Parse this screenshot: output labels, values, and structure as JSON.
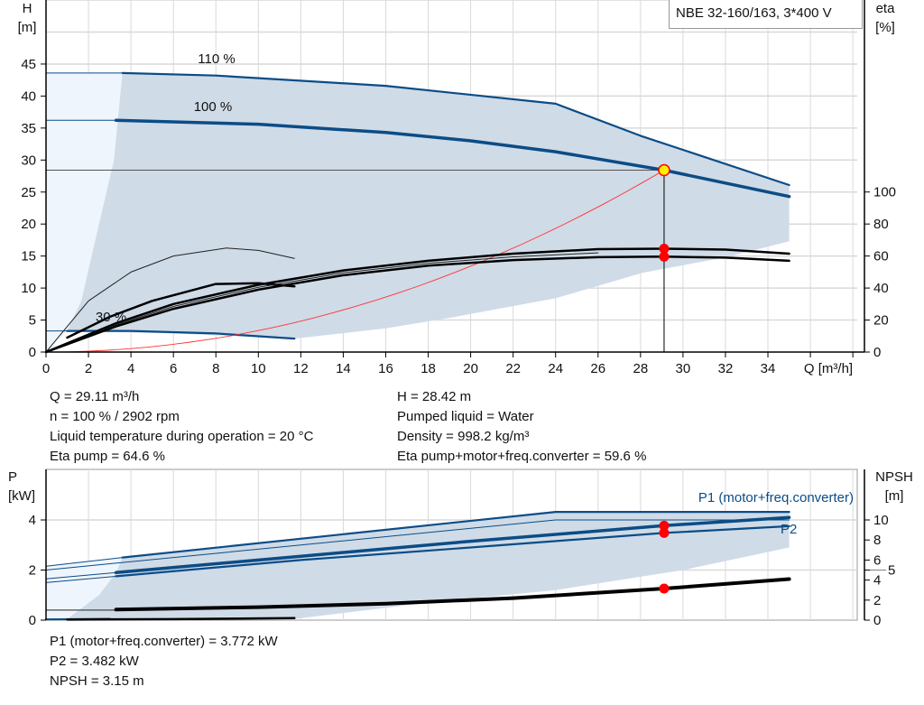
{
  "header": {
    "title": "NBE 32-160/163, 3*400 V"
  },
  "colors": {
    "curve_blue": "#0b4c86",
    "area_shade": "#cfdbe7",
    "area_light": "#eef5fc",
    "grid": "#d9d9d9",
    "system_curve": "#ff3333",
    "operating_point": "#ffee00",
    "marker": "#ff0000"
  },
  "info_top": {
    "left": [
      "Q = 29.11 m³/h",
      "n = 100 % / 2902 rpm",
      "Liquid temperature during operation = 20 °C",
      "Eta pump = 64.6 %"
    ],
    "right": [
      "H = 28.42 m",
      "Pumped liquid = Water",
      "Density = 998.2 kg/m³",
      "Eta pump+motor+freq.converter = 59.6 %"
    ]
  },
  "info_bottom": [
    "P1 (motor+freq.converter) = 3.772 kW",
    "P2 = 3.482 kW",
    "NPSH = 3.15 m"
  ],
  "chart_data": [
    {
      "type": "line",
      "title": "NBE 32-160/163, 3*400 V",
      "xlabel": "Q [m³/h]",
      "ylabel_left": {
        "name": "H",
        "unit": "[m]"
      },
      "ylabel_right": {
        "name": "eta",
        "unit": "[%]"
      },
      "xlim": [
        0,
        38
      ],
      "ylim_left": [
        0,
        50
      ],
      "ylim_right": [
        0,
        100
      ],
      "x_ticks": [
        "0",
        "2",
        "4",
        "6",
        "8",
        "10",
        "12",
        "14",
        "16",
        "18",
        "20",
        "22",
        "24",
        "26",
        "28",
        "30",
        "32",
        "34"
      ],
      "y_left_ticks": [
        "0",
        "5",
        "10",
        "15",
        "20",
        "25",
        "30",
        "35",
        "40",
        "45"
      ],
      "y_right_ticks": [
        "0",
        "20",
        "40",
        "60",
        "80",
        "100"
      ],
      "grid": true,
      "annotations": [
        "110 %",
        "100 %",
        "30 %"
      ],
      "operating_point": {
        "Q": 29.11,
        "H": 28.42,
        "eta_pump": 64.6,
        "eta_total": 59.6
      },
      "areas": {
        "light": [
          [
            0,
            0
          ],
          [
            0,
            43.6
          ],
          [
            3.6,
            43.6
          ],
          [
            3.2,
            30
          ],
          [
            2.5,
            20
          ],
          [
            1.66,
            8
          ],
          [
            1,
            3.3
          ],
          [
            0,
            0
          ]
        ],
        "shade": [
          [
            1,
            3.3
          ],
          [
            1.66,
            8
          ],
          [
            2.5,
            20
          ],
          [
            3.2,
            30
          ],
          [
            3.6,
            43.6
          ],
          [
            8,
            43.2
          ],
          [
            16,
            41.6
          ],
          [
            24,
            38.8
          ],
          [
            28,
            33.8
          ],
          [
            35,
            26.1
          ],
          [
            35,
            17.3
          ],
          [
            32,
            14.8
          ],
          [
            28.1,
            12.4
          ],
          [
            24,
            8.4
          ],
          [
            19.1,
            5.4
          ],
          [
            16,
            3.7
          ],
          [
            11.7,
            2.1
          ],
          [
            6,
            2.9
          ],
          [
            1,
            3.3
          ]
        ]
      },
      "series": [
        {
          "axis": "H",
          "style": "thin-blue",
          "points": [
            [
              0,
              43.6
            ],
            [
              3.6,
              43.6
            ]
          ]
        },
        {
          "axis": "H",
          "style": "blue",
          "points": [
            [
              3.6,
              43.6
            ],
            [
              8,
              43.2
            ],
            [
              16,
              41.6
            ],
            [
              24,
              38.8
            ],
            [
              28,
              33.8
            ],
            [
              35,
              26.1
            ]
          ]
        },
        {
          "axis": "H",
          "style": "thin-blue",
          "points": [
            [
              0,
              36.2
            ],
            [
              3.3,
              36.2
            ]
          ]
        },
        {
          "axis": "H",
          "style": "thick-blue",
          "points": [
            [
              3.3,
              36.2
            ],
            [
              10,
              35.6
            ],
            [
              16,
              34.3
            ],
            [
              20,
              33.0
            ],
            [
              24,
              31.3
            ],
            [
              29.11,
              28.42
            ],
            [
              35,
              24.3
            ]
          ]
        },
        {
          "axis": "H",
          "style": "thin-blue",
          "points": [
            [
              0,
              3.3
            ],
            [
              1,
              3.3
            ]
          ]
        },
        {
          "axis": "H",
          "style": "blue",
          "points": [
            [
              1,
              3.3
            ],
            [
              4,
              3.3
            ],
            [
              8,
              2.9
            ],
            [
              11.7,
              2.1
            ]
          ]
        },
        {
          "axis": "H",
          "style": "system",
          "points": "system"
        },
        {
          "axis": "eta",
          "style": "thin-black",
          "points": [
            [
              0,
              0
            ],
            [
              2,
              32
            ],
            [
              4,
              50
            ],
            [
              6,
              60
            ],
            [
              8.5,
              65
            ],
            [
              10,
              63.5
            ],
            [
              11.7,
              58.5
            ]
          ]
        },
        {
          "axis": "eta",
          "style": "black",
          "points": [
            [
              1,
              9
            ],
            [
              3,
              22
            ],
            [
              5,
              32
            ],
            [
              8,
              42.5
            ],
            [
              10,
              43
            ],
            [
              11.7,
              41
            ]
          ]
        },
        {
          "axis": "eta",
          "style": "black",
          "points": [
            [
              0,
              0
            ],
            [
              3.3,
              18
            ],
            [
              6,
              30
            ],
            [
              10,
              42
            ],
            [
              14,
              51
            ],
            [
              18,
              57
            ],
            [
              22,
              61.5
            ],
            [
              26,
              64.3
            ],
            [
              29.11,
              64.6
            ],
            [
              32,
              64
            ],
            [
              35,
              61.5
            ]
          ]
        },
        {
          "axis": "eta",
          "style": "thin-black",
          "points": [
            [
              0,
              0
            ],
            [
              3.3,
              17
            ],
            [
              6,
              28.5
            ],
            [
              10,
              40.5
            ],
            [
              14,
              49.5
            ],
            [
              18,
              55.5
            ],
            [
              22,
              59.5
            ],
            [
              26,
              62
            ]
          ]
        },
        {
          "axis": "eta",
          "style": "black",
          "points": [
            [
              0,
              0
            ],
            [
              3.3,
              16
            ],
            [
              6,
              27
            ],
            [
              10,
              39
            ],
            [
              14,
              48
            ],
            [
              18,
              54
            ],
            [
              22,
              57.5
            ],
            [
              26,
              59.3
            ],
            [
              29.11,
              59.6
            ],
            [
              32,
              59
            ],
            [
              35,
              57
            ]
          ]
        }
      ]
    },
    {
      "type": "line",
      "xlabel": "",
      "ylabel_left": {
        "name": "P",
        "unit": "[kW]"
      },
      "ylabel_right": {
        "name": "NPSH",
        "unit": "[m]"
      },
      "xlim": [
        0,
        38
      ],
      "ylim_left": [
        0,
        5
      ],
      "ylim_right": [
        0,
        12
      ],
      "y_left_ticks": [
        "0",
        "2",
        "4"
      ],
      "y_right_ticks": [
        "0",
        "2",
        "4",
        "5",
        "6",
        "8",
        "10"
      ],
      "grid": true,
      "series_labels": [
        "P1 (motor+freq.converter)",
        "P2"
      ],
      "operating_point": {
        "Q": 29.11,
        "P1": 3.772,
        "P2": 3.482,
        "NPSH": 3.15
      },
      "areas": {
        "light": [
          [
            0,
            0
          ],
          [
            0,
            2.15
          ],
          [
            3.6,
            2.5
          ],
          [
            3.3,
            1.9
          ],
          [
            2.5,
            1.0
          ],
          [
            1,
            0.05
          ],
          [
            0,
            0
          ]
        ],
        "shade": [
          [
            1,
            0.05
          ],
          [
            2.5,
            1.0
          ],
          [
            3.3,
            1.9
          ],
          [
            3.6,
            2.5
          ],
          [
            24,
            4.32
          ],
          [
            35,
            4.32
          ],
          [
            35,
            2.9
          ],
          [
            30,
            2.0
          ],
          [
            24,
            1.2
          ],
          [
            18,
            0.7
          ],
          [
            11.7,
            0.05
          ],
          [
            1,
            0.05
          ]
        ]
      },
      "series": [
        {
          "axis": "P",
          "style": "thin-blue",
          "points": [
            [
              0,
              2.15
            ],
            [
              3.6,
              2.5
            ]
          ]
        },
        {
          "axis": "P",
          "style": "blue",
          "points": [
            [
              3.6,
              2.5
            ],
            [
              24,
              4.32
            ],
            [
              35,
              4.32
            ]
          ]
        },
        {
          "axis": "P",
          "style": "thin-blue",
          "points": [
            [
              0,
              2.0
            ],
            [
              24,
              4.0
            ],
            [
              35,
              4.0
            ]
          ]
        },
        {
          "axis": "P",
          "style": "thin-blue",
          "points": [
            [
              0,
              1.65
            ],
            [
              3.3,
              1.9
            ]
          ]
        },
        {
          "axis": "P",
          "style": "thick-blue",
          "points": [
            [
              3.3,
              1.9
            ],
            [
              12,
              2.55
            ],
            [
              20,
              3.15
            ],
            [
              29.11,
              3.772
            ],
            [
              35,
              4.1
            ]
          ]
        },
        {
          "axis": "P",
          "style": "thin-blue",
          "points": [
            [
              0,
              1.5
            ],
            [
              3.3,
              1.75
            ]
          ]
        },
        {
          "axis": "P",
          "style": "blue",
          "points": [
            [
              3.3,
              1.75
            ],
            [
              12,
              2.4
            ],
            [
              20,
              2.9
            ],
            [
              29.11,
              3.482
            ],
            [
              35,
              3.75
            ]
          ]
        },
        {
          "axis": "P",
          "style": "blue",
          "points": [
            [
              0,
              0.03
            ],
            [
              3,
              0.05
            ]
          ]
        },
        {
          "axis": "NPSH",
          "style": "thin-black",
          "points": [
            [
              0,
              1.0
            ],
            [
              3.3,
              1.0
            ]
          ]
        },
        {
          "axis": "NPSH",
          "style": "thick-black",
          "points": [
            [
              3.3,
              1.05
            ],
            [
              10,
              1.3
            ],
            [
              16,
              1.65
            ],
            [
              22,
              2.2
            ],
            [
              29.11,
              3.15
            ],
            [
              35,
              4.1
            ]
          ]
        },
        {
          "axis": "NPSH",
          "style": "black",
          "points": [
            [
              1,
              0.05
            ],
            [
              6,
              0.1
            ],
            [
              11.7,
              0.2
            ]
          ]
        }
      ]
    }
  ]
}
